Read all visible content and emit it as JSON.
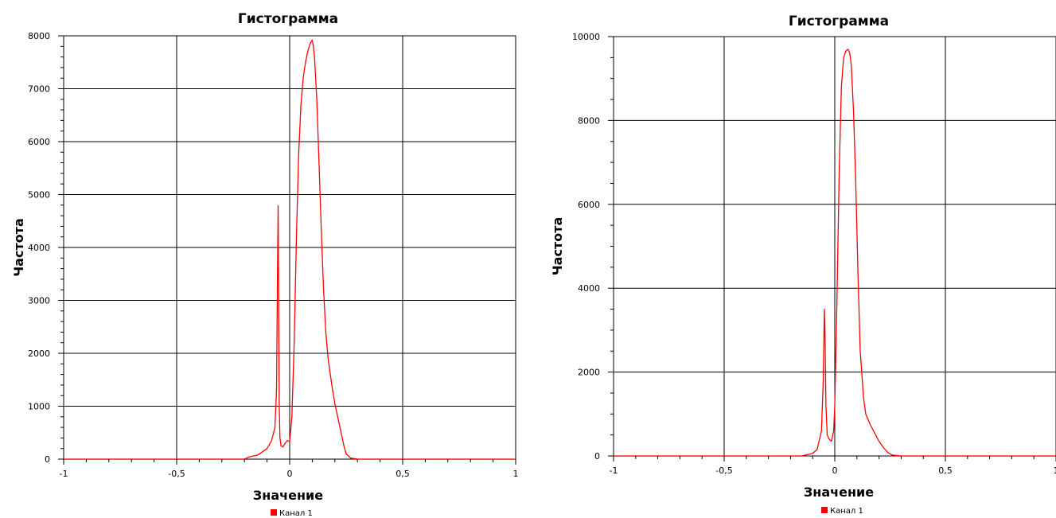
{
  "chart_data": [
    {
      "type": "line",
      "title": "Гистограмма",
      "xlabel": "Значение",
      "ylabel": "Частота",
      "xlim": [
        -1,
        1
      ],
      "ylim": [
        0,
        8000
      ],
      "x_ticks": [
        -1,
        -0.5,
        0,
        0.5,
        1
      ],
      "x_tick_labels": [
        "-1",
        "-0,5",
        "0",
        "0,5",
        "1"
      ],
      "y_ticks": [
        0,
        1000,
        2000,
        3000,
        4000,
        5000,
        6000,
        7000,
        8000
      ],
      "y_tick_labels": [
        "0",
        "1000",
        "2000",
        "3000",
        "4000",
        "5000",
        "6000",
        "7000",
        "8000"
      ],
      "grid": true,
      "legend_position": "bottom-center",
      "series": [
        {
          "name": "Канал 1",
          "color": "#ff0000",
          "x": [
            -1,
            -0.2,
            -0.18,
            -0.14,
            -0.1,
            -0.08,
            -0.065,
            -0.058,
            -0.054,
            -0.051,
            -0.049,
            -0.046,
            -0.043,
            -0.038,
            -0.03,
            -0.02,
            -0.01,
            0,
            0.01,
            0.02,
            0.03,
            0.04,
            0.05,
            0.06,
            0.07,
            0.08,
            0.09,
            0.1,
            0.105,
            0.11,
            0.12,
            0.13,
            0.14,
            0.15,
            0.16,
            0.17,
            0.18,
            0.19,
            0.2,
            0.21,
            0.22,
            0.23,
            0.24,
            0.25,
            0.27,
            0.3,
            1
          ],
          "y": [
            0,
            0,
            40,
            80,
            200,
            350,
            600,
            1300,
            3500,
            4790,
            3200,
            1000,
            400,
            250,
            230,
            300,
            350,
            330,
            800,
            2200,
            4200,
            5800,
            6700,
            7200,
            7500,
            7700,
            7850,
            7920,
            7800,
            7600,
            6800,
            5600,
            4300,
            3200,
            2400,
            1900,
            1600,
            1300,
            1050,
            850,
            650,
            450,
            250,
            100,
            20,
            0,
            0
          ]
        }
      ]
    },
    {
      "type": "line",
      "title": "Гистограмма",
      "xlabel": "Значение",
      "ylabel": "Частота",
      "xlim": [
        -1,
        1
      ],
      "ylim": [
        0,
        10000
      ],
      "x_ticks": [
        -1,
        -0.5,
        0,
        0.5,
        1
      ],
      "x_tick_labels": [
        "-1",
        "-0,5",
        "0",
        "0,5",
        "1"
      ],
      "y_ticks": [
        0,
        2000,
        4000,
        6000,
        8000,
        10000
      ],
      "y_tick_labels": [
        "0",
        "2000",
        "4000",
        "6000",
        "8000",
        "10000"
      ],
      "grid": true,
      "legend_position": "bottom-center",
      "series": [
        {
          "name": "Канал 1",
          "color": "#ff0000",
          "x": [
            -1,
            -0.15,
            -0.1,
            -0.08,
            -0.06,
            -0.052,
            -0.047,
            -0.044,
            -0.04,
            -0.034,
            -0.025,
            -0.015,
            -0.005,
            0,
            0.01,
            0.02,
            0.03,
            0.04,
            0.05,
            0.06,
            0.068,
            0.075,
            0.085,
            0.095,
            0.105,
            0.115,
            0.13,
            0.14,
            0.16,
            0.18,
            0.2,
            0.22,
            0.24,
            0.26,
            0.3,
            1
          ],
          "y": [
            0,
            0,
            60,
            150,
            600,
            1800,
            3500,
            2800,
            1200,
            500,
            400,
            350,
            600,
            1200,
            3800,
            6800,
            8800,
            9500,
            9650,
            9700,
            9600,
            9300,
            8200,
            6500,
            4300,
            2500,
            1400,
            1000,
            750,
            550,
            350,
            200,
            80,
            20,
            0,
            0
          ]
        }
      ]
    }
  ]
}
